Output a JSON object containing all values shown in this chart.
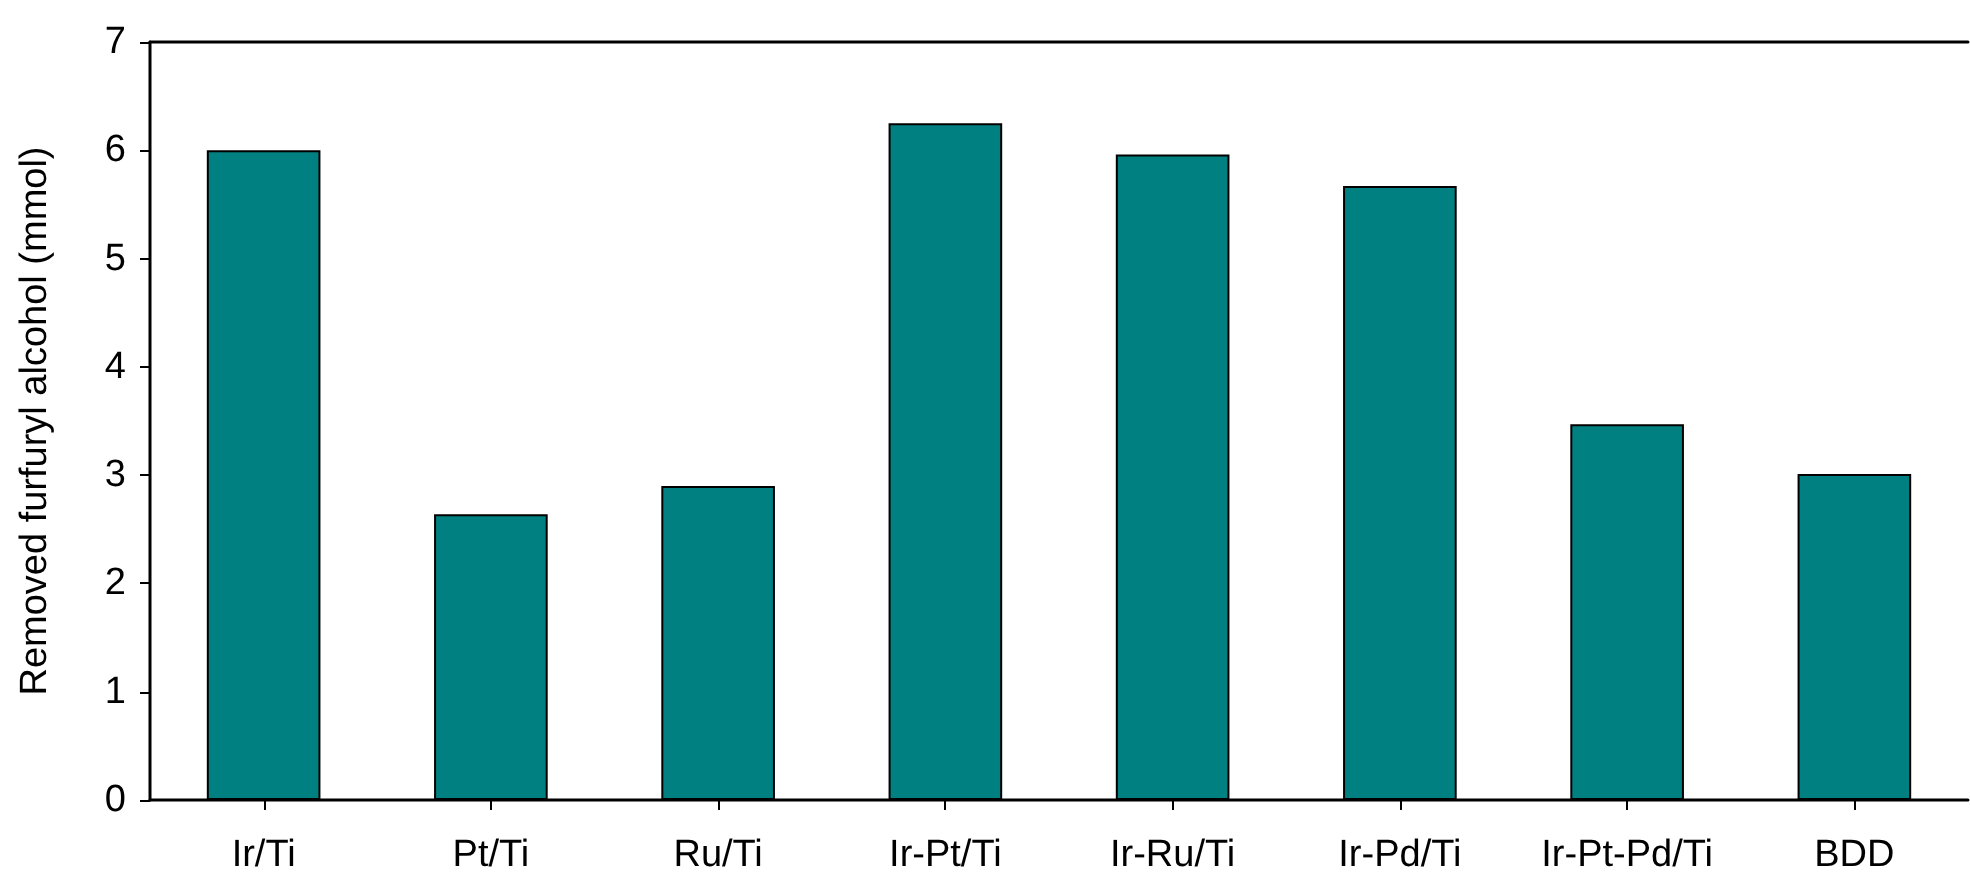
{
  "chart_data": {
    "type": "bar",
    "ylabel": "Removed furfuryl alcohol (mmol)",
    "categories": [
      "Ir/Ti",
      "Pt/Ti",
      "Ru/Ti",
      "Ir-Pt/Ti",
      "Ir-Ru/Ti",
      "Ir-Pd/Ti",
      "Ir-Pt-Pd/Ti",
      "BDD"
    ],
    "values": [
      6.0,
      2.64,
      2.9,
      6.25,
      5.96,
      5.67,
      3.47,
      3.01
    ],
    "color": "#008080",
    "ylim": [
      0,
      7
    ],
    "yticks": [
      0,
      1,
      2,
      3,
      4,
      5,
      6,
      7
    ],
    "grid": false
  }
}
